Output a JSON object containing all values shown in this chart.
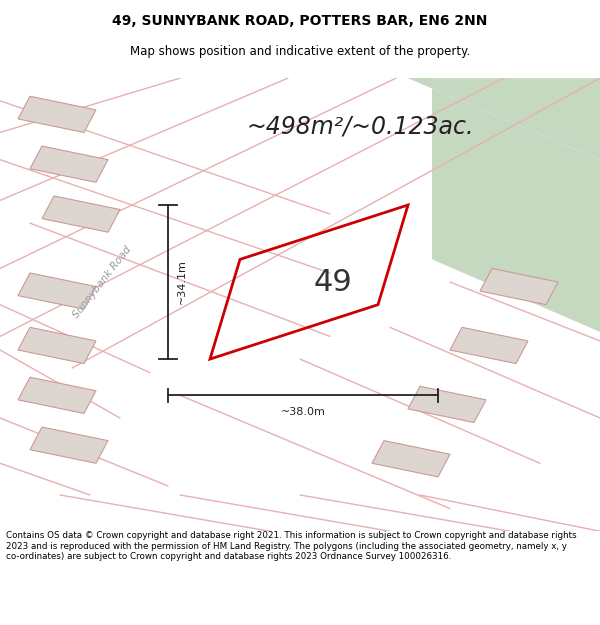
{
  "title_line1": "49, SUNNYBANK ROAD, POTTERS BAR, EN6 2NN",
  "title_line2": "Map shows position and indicative extent of the property.",
  "area_text": "~498m²/~0.123ac.",
  "property_number": "49",
  "dim_vertical": "~34.1m",
  "dim_horizontal": "~38.0m",
  "road_label": "Sunnybank Road",
  "footer_text": "Contains OS data © Crown copyright and database right 2021. This information is subject to Crown copyright and database rights 2023 and is reproduced with the permission of HM Land Registry. The polygons (including the associated geometry, namely x, y co-ordinates) are subject to Crown copyright and database rights 2023 Ordnance Survey 100026316.",
  "map_bg": "#ede8e4",
  "green_area_color": "#c5d9c0",
  "plot_outline_color": "#cc0000",
  "dim_line_color": "#222222",
  "road_line_color": "#e8b0b0",
  "building_fill": "#ddd5cf",
  "building_line": "#cc9999"
}
